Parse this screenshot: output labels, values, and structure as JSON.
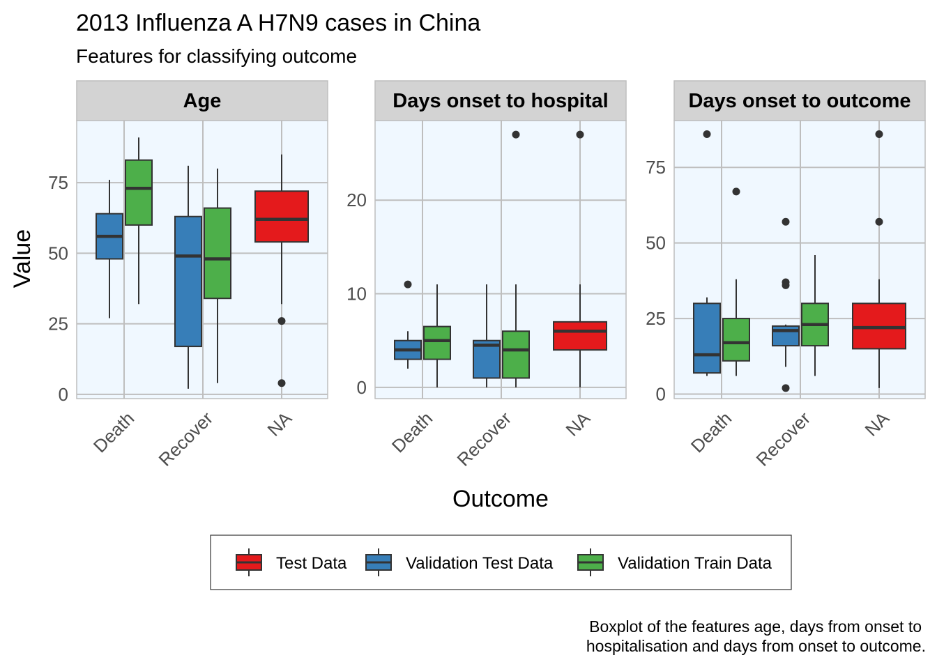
{
  "title": "2013 Influenza A H7N9 cases in China",
  "subtitle": "Features for classifying outcome",
  "caption_lines": [
    "Boxplot of the features age, days from onset to",
    "hospitalisation and days from onset to outcome."
  ],
  "colors": {
    "test_data": "#E41A1C",
    "validation_test_data": "#377EB8",
    "validation_train_data": "#4DAF4A",
    "panel_background": "#F0F8FF",
    "strip_background": "#D3D3D3",
    "grid": "#BEBEBE"
  },
  "legend": {
    "items": [
      {
        "label": "Test Data",
        "color": "#E41A1C"
      },
      {
        "label": "Validation Test Data",
        "color": "#377EB8"
      },
      {
        "label": "Validation Train Data",
        "color": "#4DAF4A"
      }
    ]
  },
  "chart_data": {
    "type": "boxplot",
    "xlabel": "Outcome",
    "ylabel": "Value",
    "categories": [
      "Death",
      "Recover",
      "NA"
    ],
    "grid": true,
    "legend_position": "bottom",
    "panels": [
      {
        "label": "Age",
        "ylim": [
          -1.5,
          97
        ],
        "yticks": [
          0,
          25,
          50,
          75
        ],
        "boxes": [
          {
            "category": "Death",
            "series": "Validation Test Data",
            "min": 27,
            "q1": 48,
            "median": 56,
            "q3": 64,
            "max": 76,
            "outliers": []
          },
          {
            "category": "Death",
            "series": "Validation Train Data",
            "min": 32,
            "q1": 60,
            "median": 73,
            "q3": 83,
            "max": 91,
            "outliers": []
          },
          {
            "category": "Recover",
            "series": "Validation Test Data",
            "min": 2,
            "q1": 17,
            "median": 49,
            "q3": 63,
            "max": 81,
            "outliers": []
          },
          {
            "category": "Recover",
            "series": "Validation Train Data",
            "min": 4,
            "q1": 34,
            "median": 48,
            "q3": 66,
            "max": 80,
            "outliers": []
          },
          {
            "category": "NA",
            "series": "Test Data",
            "min": 32,
            "q1": 54,
            "median": 62,
            "q3": 72,
            "max": 85,
            "outliers": [
              26,
              4
            ]
          }
        ]
      },
      {
        "label": "Days onset to hospital",
        "ylim": [
          -1.2,
          28.5
        ],
        "yticks": [
          0,
          10,
          20
        ],
        "boxes": [
          {
            "category": "Death",
            "series": "Validation Test Data",
            "min": 2,
            "q1": 3,
            "median": 4,
            "q3": 5,
            "max": 6,
            "outliers": [
              11
            ]
          },
          {
            "category": "Death",
            "series": "Validation Train Data",
            "min": 0,
            "q1": 3,
            "median": 5,
            "q3": 6.5,
            "max": 11,
            "outliers": []
          },
          {
            "category": "Recover",
            "series": "Validation Test Data",
            "min": 0,
            "q1": 1,
            "median": 4.5,
            "q3": 5,
            "max": 11,
            "outliers": []
          },
          {
            "category": "Recover",
            "series": "Validation Train Data",
            "min": 0,
            "q1": 1,
            "median": 4,
            "q3": 6,
            "max": 11,
            "outliers": [
              27
            ]
          },
          {
            "category": "NA",
            "series": "Test Data",
            "min": 0,
            "q1": 4,
            "median": 6,
            "q3": 7,
            "max": 11,
            "outliers": [
              27
            ]
          }
        ]
      },
      {
        "label": "Days onset to outcome",
        "ylim": [
          -1.5,
          90.5
        ],
        "yticks": [
          0,
          25,
          50,
          75
        ],
        "boxes": [
          {
            "category": "Death",
            "series": "Validation Test Data",
            "min": 6,
            "q1": 7,
            "median": 13,
            "q3": 30,
            "max": 32,
            "outliers": [
              86
            ]
          },
          {
            "category": "Death",
            "series": "Validation Train Data",
            "min": 6,
            "q1": 11,
            "median": 17,
            "q3": 25,
            "max": 38,
            "outliers": [
              67
            ]
          },
          {
            "category": "Recover",
            "series": "Validation Test Data",
            "min": 9,
            "q1": 16,
            "median": 21,
            "q3": 22.5,
            "max": 23,
            "outliers": [
              57,
              37,
              36,
              2
            ]
          },
          {
            "category": "Recover",
            "series": "Validation Train Data",
            "min": 6,
            "q1": 16,
            "median": 23,
            "q3": 30,
            "max": 46,
            "outliers": []
          },
          {
            "category": "NA",
            "series": "Test Data",
            "min": 2,
            "q1": 15,
            "median": 22,
            "q3": 30,
            "max": 38,
            "outliers": [
              86,
              57
            ]
          }
        ]
      }
    ]
  }
}
